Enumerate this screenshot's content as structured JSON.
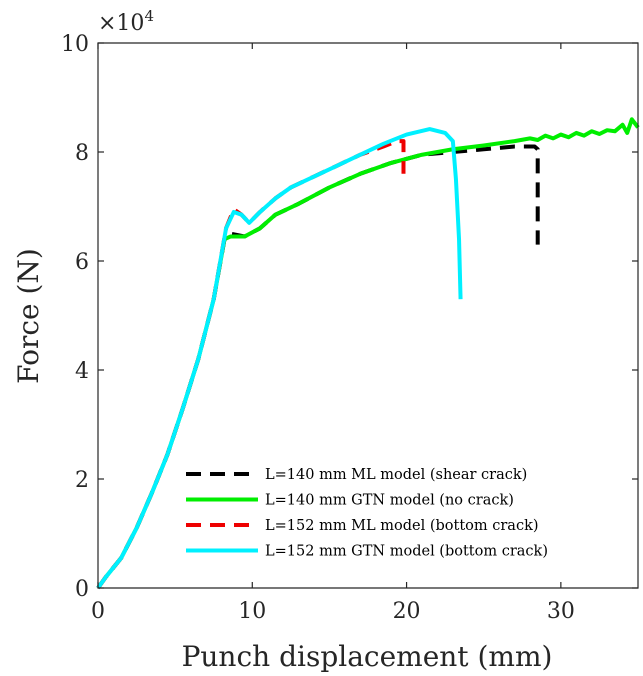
{
  "chart_data": {
    "type": "line",
    "xlabel": "Punch displacement (mm)",
    "ylabel": "Force (N)",
    "xlim": [
      0,
      35
    ],
    "ylim": [
      0,
      10
    ],
    "x_ticks": [
      0,
      10,
      20,
      30
    ],
    "y_ticks": [
      0,
      2,
      4,
      6,
      8,
      10
    ],
    "y_multiplier": {
      "base": "×10",
      "exponent": "4"
    },
    "grid": false,
    "legend_position": "bottom-right",
    "series": [
      {
        "name": "L=140 mm ML model (shear crack)",
        "color": "#000000",
        "dash": "dashed",
        "points": [
          [
            0,
            0
          ],
          [
            0.5,
            0.2
          ],
          [
            1.5,
            0.55
          ],
          [
            2.5,
            1.1
          ],
          [
            3.5,
            1.75
          ],
          [
            4.5,
            2.45
          ],
          [
            5.5,
            3.3
          ],
          [
            6.5,
            4.2
          ],
          [
            7.5,
            5.3
          ],
          [
            8.2,
            6.4
          ],
          [
            8.6,
            6.5
          ],
          [
            9.5,
            6.45
          ],
          [
            10.5,
            6.6
          ],
          [
            11.5,
            6.85
          ],
          [
            13,
            7.05
          ],
          [
            15,
            7.35
          ],
          [
            17,
            7.6
          ],
          [
            19,
            7.8
          ],
          [
            21,
            7.95
          ],
          [
            23,
            8.0
          ],
          [
            25,
            8.05
          ],
          [
            27,
            8.1
          ],
          [
            28.3,
            8.1
          ],
          [
            28.5,
            8.05
          ],
          [
            28.5,
            6.3
          ]
        ]
      },
      {
        "name": "L=140 mm GTN model (no crack)",
        "color": "#00ee00",
        "dash": "solid",
        "points": [
          [
            0,
            0
          ],
          [
            0.5,
            0.2
          ],
          [
            1.5,
            0.55
          ],
          [
            2.5,
            1.1
          ],
          [
            3.5,
            1.75
          ],
          [
            4.5,
            2.45
          ],
          [
            5.5,
            3.3
          ],
          [
            6.5,
            4.2
          ],
          [
            7.5,
            5.3
          ],
          [
            8.2,
            6.4
          ],
          [
            8.6,
            6.45
          ],
          [
            9.5,
            6.45
          ],
          [
            10.5,
            6.6
          ],
          [
            11.5,
            6.85
          ],
          [
            13,
            7.05
          ],
          [
            15,
            7.35
          ],
          [
            17,
            7.6
          ],
          [
            19,
            7.8
          ],
          [
            21,
            7.95
          ],
          [
            23,
            8.05
          ],
          [
            25,
            8.12
          ],
          [
            27,
            8.2
          ],
          [
            28,
            8.25
          ],
          [
            28.5,
            8.22
          ],
          [
            29,
            8.3
          ],
          [
            29.5,
            8.25
          ],
          [
            30,
            8.32
          ],
          [
            30.5,
            8.27
          ],
          [
            31,
            8.35
          ],
          [
            31.5,
            8.3
          ],
          [
            32,
            8.38
          ],
          [
            32.5,
            8.33
          ],
          [
            33,
            8.4
          ],
          [
            33.5,
            8.38
          ],
          [
            34,
            8.5
          ],
          [
            34.3,
            8.35
          ],
          [
            34.6,
            8.6
          ],
          [
            35,
            8.45
          ]
        ]
      },
      {
        "name": "L=152 mm ML model (bottom crack)",
        "color": "#ee0000",
        "dash": "dashed",
        "points": [
          [
            0,
            0
          ],
          [
            0.5,
            0.2
          ],
          [
            1.5,
            0.55
          ],
          [
            2.5,
            1.1
          ],
          [
            3.5,
            1.75
          ],
          [
            4.5,
            2.45
          ],
          [
            5.5,
            3.3
          ],
          [
            6.5,
            4.2
          ],
          [
            7.5,
            5.3
          ],
          [
            8.3,
            6.6
          ],
          [
            8.8,
            6.95
          ],
          [
            9.3,
            6.85
          ],
          [
            9.8,
            6.7
          ],
          [
            10.5,
            6.9
          ],
          [
            11.5,
            7.15
          ],
          [
            12.5,
            7.35
          ],
          [
            14,
            7.55
          ],
          [
            15.5,
            7.75
          ],
          [
            17,
            7.95
          ],
          [
            18.5,
            8.1
          ],
          [
            19.4,
            8.2
          ],
          [
            19.8,
            8.2
          ],
          [
            19.8,
            7.6
          ]
        ]
      },
      {
        "name": "L=152 mm GTN model (bottom crack)",
        "color": "#00f0ff",
        "dash": "solid",
        "points": [
          [
            0,
            0
          ],
          [
            0.5,
            0.2
          ],
          [
            1.5,
            0.55
          ],
          [
            2.5,
            1.1
          ],
          [
            3.5,
            1.75
          ],
          [
            4.5,
            2.45
          ],
          [
            5.5,
            3.3
          ],
          [
            6.5,
            4.2
          ],
          [
            7.5,
            5.3
          ],
          [
            8.3,
            6.6
          ],
          [
            8.8,
            6.9
          ],
          [
            9.3,
            6.85
          ],
          [
            9.8,
            6.7
          ],
          [
            10.5,
            6.9
          ],
          [
            11.5,
            7.15
          ],
          [
            12.5,
            7.35
          ],
          [
            14,
            7.55
          ],
          [
            15.5,
            7.75
          ],
          [
            17,
            7.95
          ],
          [
            18.5,
            8.15
          ],
          [
            20,
            8.32
          ],
          [
            21.5,
            8.42
          ],
          [
            22.5,
            8.35
          ],
          [
            23,
            8.2
          ],
          [
            23.2,
            7.5
          ],
          [
            23.4,
            6.4
          ],
          [
            23.5,
            5.3
          ]
        ]
      }
    ]
  }
}
